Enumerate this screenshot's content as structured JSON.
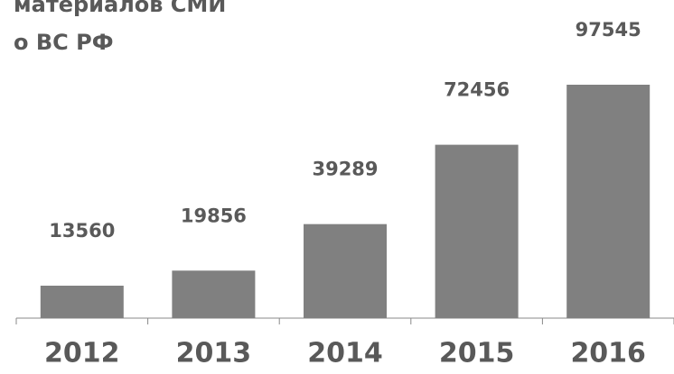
{
  "chart_data": {
    "type": "bar",
    "title_lines": [
      "материалов СМИ",
      "о ВС РФ"
    ],
    "categories": [
      "2012",
      "2013",
      "2014",
      "2015",
      "2016"
    ],
    "values": [
      13560,
      19856,
      39289,
      72456,
      97545
    ],
    "color": "#808080"
  }
}
